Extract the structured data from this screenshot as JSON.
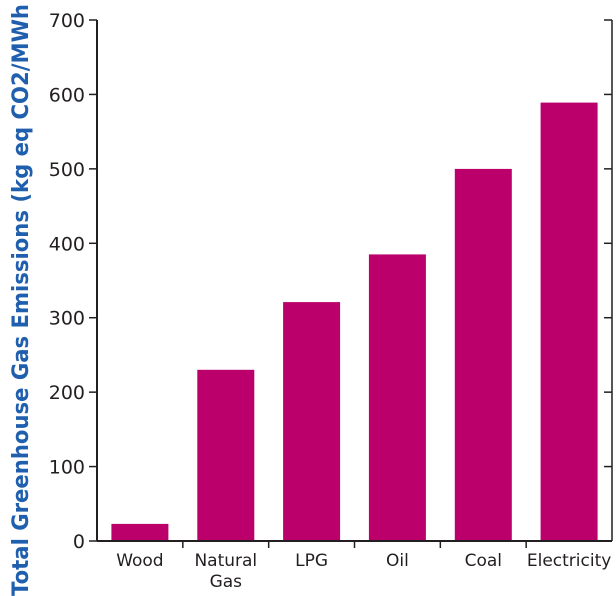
{
  "chart_data": {
    "type": "bar",
    "title": "",
    "xlabel": "",
    "ylabel": "Total Greenhouse Gas Emissions (kg eq CO2/MWh",
    "categories": [
      [
        "Wood"
      ],
      [
        "Natural",
        "Gas"
      ],
      [
        "LPG"
      ],
      [
        "Oil"
      ],
      [
        "Coal"
      ],
      [
        "Electricity"
      ]
    ],
    "values": [
      23,
      230,
      321,
      385,
      500,
      589
    ],
    "ylim": [
      0,
      700
    ],
    "yticks": [
      "0",
      "100",
      "200",
      "300",
      "400",
      "500",
      "600",
      "700"
    ],
    "grid": false,
    "legend": "none",
    "bar_color": "#bc006b",
    "axis_color": "#231f20",
    "ylabel_color": "#1f5fae"
  }
}
